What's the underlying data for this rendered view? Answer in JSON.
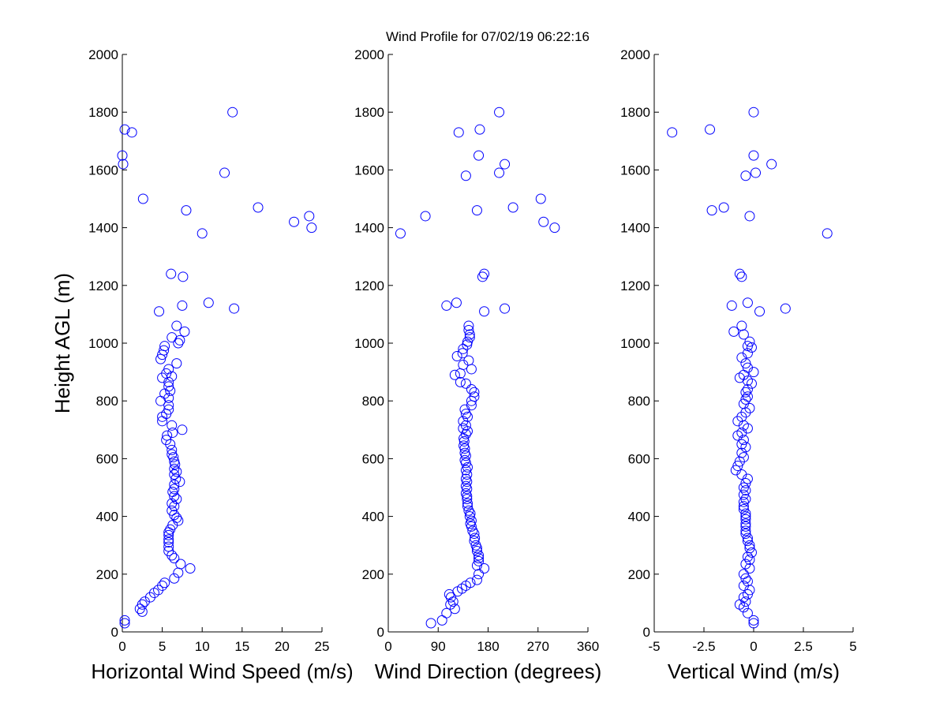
{
  "figure_title": "Wind Profile for  07/02/19 06:22:16",
  "chart_data": [
    {
      "type": "scatter",
      "title": "Wind Profile for  07/02/19 06:22:16",
      "xlabel": "Horizontal Wind Speed (m/s)",
      "ylabel": "Height AGL (m)",
      "xlim": [
        0,
        25
      ],
      "ylim": [
        0,
        2000
      ],
      "xticks": [
        0,
        5,
        10,
        15,
        20,
        25
      ],
      "xtick_labels": [
        "0",
        "5",
        "10",
        "15",
        "20",
        "25"
      ],
      "yticks": [
        0,
        200,
        400,
        600,
        800,
        1000,
        1200,
        1400,
        1600,
        1800,
        2000
      ],
      "ytick_labels": [
        "0",
        "200",
        "400",
        "600",
        "800",
        "1000",
        "1200",
        "1400",
        "1600",
        "1800",
        "2000"
      ],
      "marker": "circle-open",
      "color": "#0000ff",
      "points": [
        [
          0.3,
          30
        ],
        [
          0.3,
          40
        ],
        [
          2.5,
          70
        ],
        [
          2.2,
          80
        ],
        [
          2.5,
          95
        ],
        [
          2.8,
          105
        ],
        [
          3.5,
          120
        ],
        [
          4.0,
          135
        ],
        [
          4.5,
          145
        ],
        [
          5.0,
          160
        ],
        [
          5.3,
          170
        ],
        [
          6.5,
          185
        ],
        [
          7.0,
          205
        ],
        [
          7.3,
          235
        ],
        [
          8.5,
          220
        ],
        [
          6.5,
          255
        ],
        [
          6.2,
          265
        ],
        [
          5.8,
          280
        ],
        [
          5.8,
          295
        ],
        [
          5.8,
          310
        ],
        [
          5.8,
          320
        ],
        [
          5.8,
          335
        ],
        [
          5.8,
          345
        ],
        [
          6.0,
          355
        ],
        [
          6.3,
          370
        ],
        [
          7.0,
          385
        ],
        [
          6.8,
          395
        ],
        [
          6.5,
          405
        ],
        [
          6.2,
          420
        ],
        [
          6.5,
          435
        ],
        [
          6.2,
          445
        ],
        [
          6.8,
          460
        ],
        [
          6.5,
          470
        ],
        [
          6.3,
          485
        ],
        [
          6.5,
          495
        ],
        [
          6.5,
          510
        ],
        [
          7.2,
          520
        ],
        [
          6.7,
          530
        ],
        [
          6.5,
          545
        ],
        [
          6.8,
          555
        ],
        [
          6.5,
          565
        ],
        [
          6.6,
          580
        ],
        [
          6.5,
          590
        ],
        [
          6.4,
          605
        ],
        [
          6.2,
          615
        ],
        [
          6.2,
          630
        ],
        [
          6.0,
          650
        ],
        [
          5.5,
          665
        ],
        [
          5.6,
          680
        ],
        [
          6.3,
          690
        ],
        [
          7.5,
          700
        ],
        [
          6.2,
          715
        ],
        [
          5.0,
          730
        ],
        [
          5.0,
          745
        ],
        [
          5.5,
          755
        ],
        [
          5.8,
          770
        ],
        [
          5.8,
          785
        ],
        [
          4.8,
          800
        ],
        [
          5.8,
          810
        ],
        [
          5.3,
          825
        ],
        [
          6.0,
          835
        ],
        [
          5.8,
          850
        ],
        [
          5.8,
          865
        ],
        [
          5.0,
          880
        ],
        [
          6.2,
          885
        ],
        [
          5.5,
          895
        ],
        [
          5.8,
          910
        ],
        [
          6.8,
          930
        ],
        [
          4.8,
          945
        ],
        [
          5.0,
          960
        ],
        [
          5.2,
          975
        ],
        [
          5.3,
          990
        ],
        [
          7.0,
          1000
        ],
        [
          7.2,
          1010
        ],
        [
          6.2,
          1020
        ],
        [
          7.8,
          1040
        ],
        [
          6.8,
          1060
        ],
        [
          4.6,
          1110
        ],
        [
          14.0,
          1120
        ],
        [
          7.5,
          1130
        ],
        [
          10.8,
          1140
        ],
        [
          6.1,
          1240
        ],
        [
          7.6,
          1230
        ],
        [
          10.0,
          1380
        ],
        [
          23.7,
          1400
        ],
        [
          21.5,
          1420
        ],
        [
          23.4,
          1440
        ],
        [
          8.0,
          1460
        ],
        [
          17.0,
          1470
        ],
        [
          2.6,
          1500
        ],
        [
          12.8,
          1590
        ],
        [
          0.1,
          1620
        ],
        [
          0.0,
          1650
        ],
        [
          0.3,
          1740
        ],
        [
          1.2,
          1730
        ],
        [
          13.8,
          1800
        ]
      ]
    },
    {
      "type": "scatter",
      "xlabel": "Wind Direction (degrees)",
      "ylabel": "",
      "xlim": [
        0,
        360
      ],
      "ylim": [
        0,
        2000
      ],
      "xticks": [
        0,
        90,
        180,
        270,
        360
      ],
      "xtick_labels": [
        "0",
        "90",
        "180",
        "270",
        "360"
      ],
      "yticks": [
        0,
        200,
        400,
        600,
        800,
        1000,
        1200,
        1400,
        1600,
        1800,
        2000
      ],
      "ytick_labels": [
        "0",
        "200",
        "400",
        "600",
        "800",
        "1000",
        "1200",
        "1400",
        "1600",
        "1800",
        "2000"
      ],
      "marker": "circle-open",
      "color": "#0000ff",
      "points": [
        [
          77,
          30
        ],
        [
          97,
          40
        ],
        [
          105,
          65
        ],
        [
          120,
          80
        ],
        [
          112,
          95
        ],
        [
          117,
          105
        ],
        [
          113,
          120
        ],
        [
          110,
          130
        ],
        [
          125,
          140
        ],
        [
          133,
          150
        ],
        [
          140,
          160
        ],
        [
          148,
          170
        ],
        [
          160,
          180
        ],
        [
          163,
          200
        ],
        [
          173,
          220
        ],
        [
          160,
          230
        ],
        [
          163,
          245
        ],
        [
          163,
          255
        ],
        [
          163,
          265
        ],
        [
          160,
          280
        ],
        [
          160,
          290
        ],
        [
          158,
          300
        ],
        [
          155,
          315
        ],
        [
          156,
          325
        ],
        [
          155,
          340
        ],
        [
          152,
          350
        ],
        [
          150,
          365
        ],
        [
          148,
          375
        ],
        [
          150,
          385
        ],
        [
          147,
          400
        ],
        [
          148,
          410
        ],
        [
          145,
          420
        ],
        [
          143,
          435
        ],
        [
          143,
          445
        ],
        [
          142,
          460
        ],
        [
          142,
          470
        ],
        [
          140,
          480
        ],
        [
          142,
          495
        ],
        [
          140,
          505
        ],
        [
          142,
          520
        ],
        [
          140,
          530
        ],
        [
          142,
          545
        ],
        [
          140,
          560
        ],
        [
          143,
          570
        ],
        [
          140,
          585
        ],
        [
          138,
          595
        ],
        [
          140,
          610
        ],
        [
          138,
          620
        ],
        [
          138,
          635
        ],
        [
          136,
          645
        ],
        [
          137,
          660
        ],
        [
          136,
          670
        ],
        [
          140,
          685
        ],
        [
          143,
          695
        ],
        [
          135,
          705
        ],
        [
          140,
          715
        ],
        [
          135,
          730
        ],
        [
          143,
          745
        ],
        [
          140,
          755
        ],
        [
          138,
          770
        ],
        [
          150,
          785
        ],
        [
          150,
          800
        ],
        [
          155,
          815
        ],
        [
          155,
          830
        ],
        [
          150,
          840
        ],
        [
          140,
          860
        ],
        [
          130,
          865
        ],
        [
          120,
          890
        ],
        [
          130,
          895
        ],
        [
          150,
          910
        ],
        [
          135,
          925
        ],
        [
          145,
          940
        ],
        [
          124,
          955
        ],
        [
          134,
          965
        ],
        [
          135,
          980
        ],
        [
          142,
          995
        ],
        [
          143,
          1005
        ],
        [
          147,
          1020
        ],
        [
          147,
          1030
        ],
        [
          145,
          1045
        ],
        [
          145,
          1060
        ],
        [
          173,
          1110
        ],
        [
          210,
          1120
        ],
        [
          105,
          1130
        ],
        [
          123,
          1140
        ],
        [
          173,
          1240
        ],
        [
          170,
          1230
        ],
        [
          22,
          1380
        ],
        [
          300,
          1400
        ],
        [
          280,
          1420
        ],
        [
          67,
          1440
        ],
        [
          160,
          1460
        ],
        [
          225,
          1470
        ],
        [
          275,
          1500
        ],
        [
          140,
          1580
        ],
        [
          200,
          1590
        ],
        [
          210,
          1620
        ],
        [
          163,
          1650
        ],
        [
          127,
          1730
        ],
        [
          165,
          1740
        ],
        [
          200,
          1800
        ]
      ]
    },
    {
      "type": "scatter",
      "xlabel": "Vertical Wind (m/s)",
      "ylabel": "",
      "xlim": [
        -5,
        5
      ],
      "ylim": [
        0,
        2000
      ],
      "xticks": [
        -5,
        -2.5,
        0,
        2.5,
        5
      ],
      "xtick_labels": [
        "-5",
        "-2.5",
        "0",
        "2.5",
        "5"
      ],
      "yticks": [
        0,
        200,
        400,
        600,
        800,
        1000,
        1200,
        1400,
        1600,
        1800,
        2000
      ],
      "ytick_labels": [
        "0",
        "200",
        "400",
        "600",
        "800",
        "1000",
        "1200",
        "1400",
        "1600",
        "1800",
        "2000"
      ],
      "marker": "circle-open",
      "color": "#0000ff",
      "points": [
        [
          0.0,
          30
        ],
        [
          0.0,
          40
        ],
        [
          -0.3,
          65
        ],
        [
          -0.5,
          85
        ],
        [
          -0.7,
          95
        ],
        [
          -0.4,
          105
        ],
        [
          -0.5,
          120
        ],
        [
          -0.3,
          130
        ],
        [
          -0.2,
          145
        ],
        [
          -0.5,
          160
        ],
        [
          -0.3,
          175
        ],
        [
          -0.4,
          185
        ],
        [
          -0.5,
          200
        ],
        [
          -0.2,
          220
        ],
        [
          -0.4,
          235
        ],
        [
          -0.2,
          250
        ],
        [
          -0.3,
          260
        ],
        [
          -0.1,
          275
        ],
        [
          -0.2,
          290
        ],
        [
          -0.2,
          300
        ],
        [
          -0.3,
          315
        ],
        [
          -0.3,
          325
        ],
        [
          -0.4,
          340
        ],
        [
          -0.4,
          350
        ],
        [
          -0.4,
          365
        ],
        [
          -0.4,
          375
        ],
        [
          -0.4,
          390
        ],
        [
          -0.4,
          400
        ],
        [
          -0.4,
          410
        ],
        [
          -0.5,
          425
        ],
        [
          -0.5,
          435
        ],
        [
          -0.5,
          450
        ],
        [
          -0.4,
          460
        ],
        [
          -0.5,
          475
        ],
        [
          -0.4,
          490
        ],
        [
          -0.5,
          500
        ],
        [
          -0.4,
          515
        ],
        [
          -0.3,
          530
        ],
        [
          -0.6,
          545
        ],
        [
          -0.9,
          560
        ],
        [
          -0.8,
          575
        ],
        [
          -0.7,
          590
        ],
        [
          -0.5,
          605
        ],
        [
          -0.6,
          620
        ],
        [
          -0.4,
          640
        ],
        [
          -0.6,
          650
        ],
        [
          -0.5,
          665
        ],
        [
          -0.8,
          680
        ],
        [
          -0.6,
          690
        ],
        [
          -0.3,
          705
        ],
        [
          -0.5,
          715
        ],
        [
          -0.8,
          730
        ],
        [
          -0.6,
          745
        ],
        [
          -0.4,
          760
        ],
        [
          -0.2,
          775
        ],
        [
          -0.5,
          790
        ],
        [
          -0.4,
          805
        ],
        [
          -0.3,
          815
        ],
        [
          -0.4,
          830
        ],
        [
          -0.3,
          840
        ],
        [
          -0.1,
          860
        ],
        [
          -0.3,
          870
        ],
        [
          -0.7,
          880
        ],
        [
          -0.5,
          890
        ],
        [
          0.0,
          900
        ],
        [
          -0.3,
          915
        ],
        [
          -0.4,
          930
        ],
        [
          -0.6,
          950
        ],
        [
          -0.3,
          965
        ],
        [
          -0.1,
          985
        ],
        [
          -0.3,
          990
        ],
        [
          -0.2,
          1005
        ],
        [
          -0.5,
          1030
        ],
        [
          -1.0,
          1040
        ],
        [
          -0.6,
          1060
        ],
        [
          0.3,
          1110
        ],
        [
          1.6,
          1120
        ],
        [
          -1.1,
          1130
        ],
        [
          -0.3,
          1140
        ],
        [
          -0.7,
          1240
        ],
        [
          -0.6,
          1230
        ],
        [
          3.7,
          1380
        ],
        [
          -0.2,
          1440
        ],
        [
          -2.1,
          1460
        ],
        [
          -1.5,
          1470
        ],
        [
          -0.4,
          1580
        ],
        [
          0.1,
          1590
        ],
        [
          0.9,
          1620
        ],
        [
          0.0,
          1650
        ],
        [
          -4.1,
          1730
        ],
        [
          -2.2,
          1740
        ],
        [
          0.0,
          1800
        ]
      ]
    }
  ]
}
